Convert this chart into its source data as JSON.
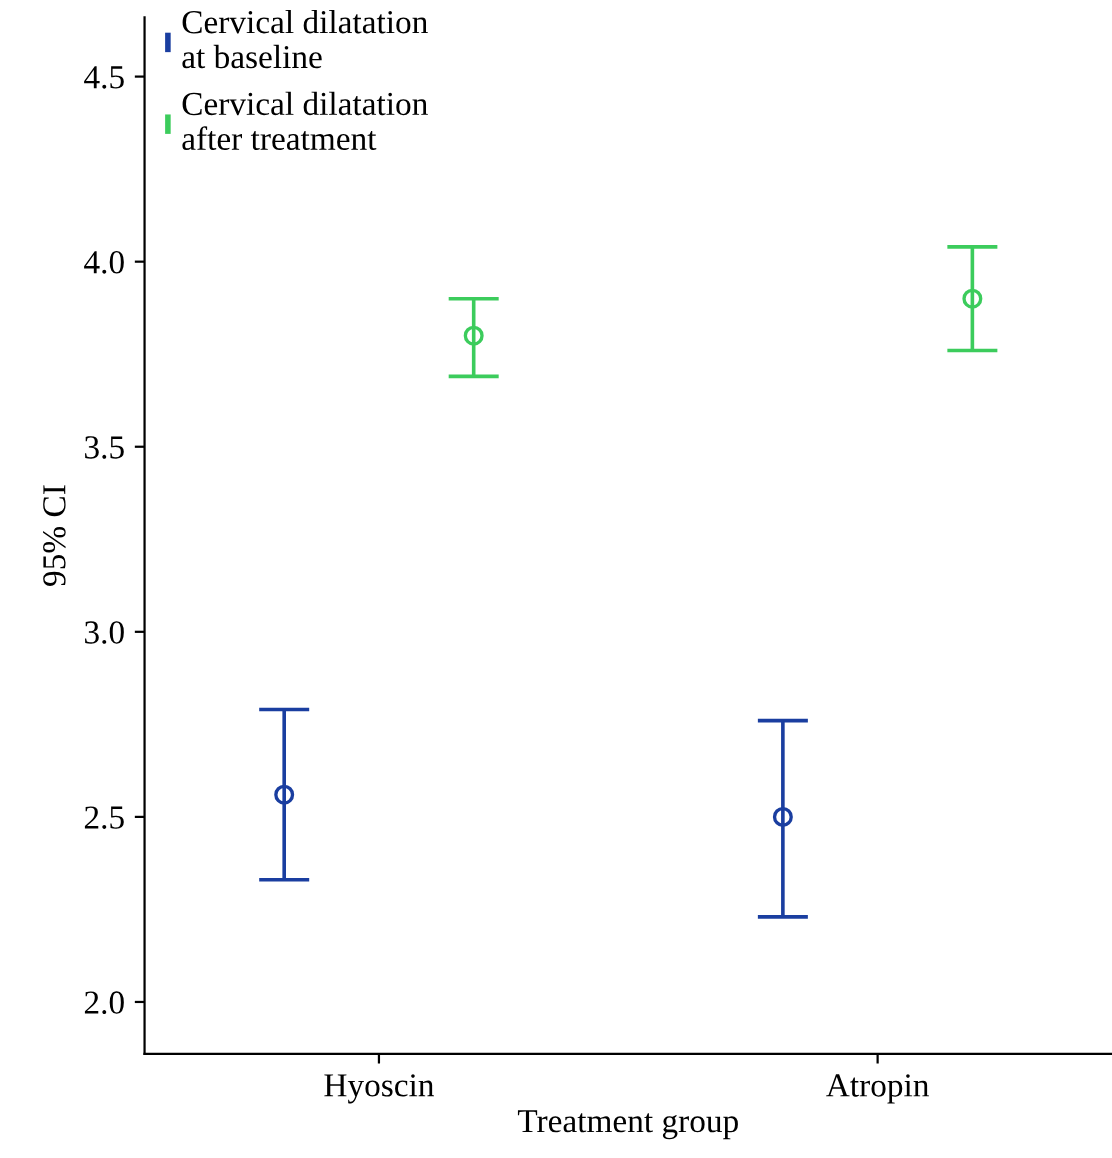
{
  "chart_data": {
    "type": "scatter",
    "xlabel": "Treatment group",
    "ylabel": "95% CI",
    "categories": [
      "Hyoscin",
      "Atropin"
    ],
    "series": [
      {
        "name": "Cervical dilatation\nat baseline",
        "color": "#1a3ea0",
        "values": [
          2.56,
          2.5
        ],
        "errors": [
          [
            2.33,
            2.79
          ],
          [
            2.23,
            2.76
          ]
        ]
      },
      {
        "name": "Cervical dilatation\nafter treatment",
        "color": "#3ccc5c",
        "values": [
          3.8,
          3.9
        ],
        "errors": [
          [
            3.69,
            3.9
          ],
          [
            3.76,
            4.04
          ]
        ]
      }
    ],
    "ylim": [
      1.86,
      4.66
    ],
    "yticks": [
      {
        "value": 2,
        "label": "2.0"
      },
      2.5,
      {
        "value": 3,
        "label": "3.0"
      },
      3.5,
      {
        "value": 4,
        "label": "4.0"
      },
      4.5
    ],
    "marker": "circle",
    "grid": false,
    "legend": "top left"
  }
}
